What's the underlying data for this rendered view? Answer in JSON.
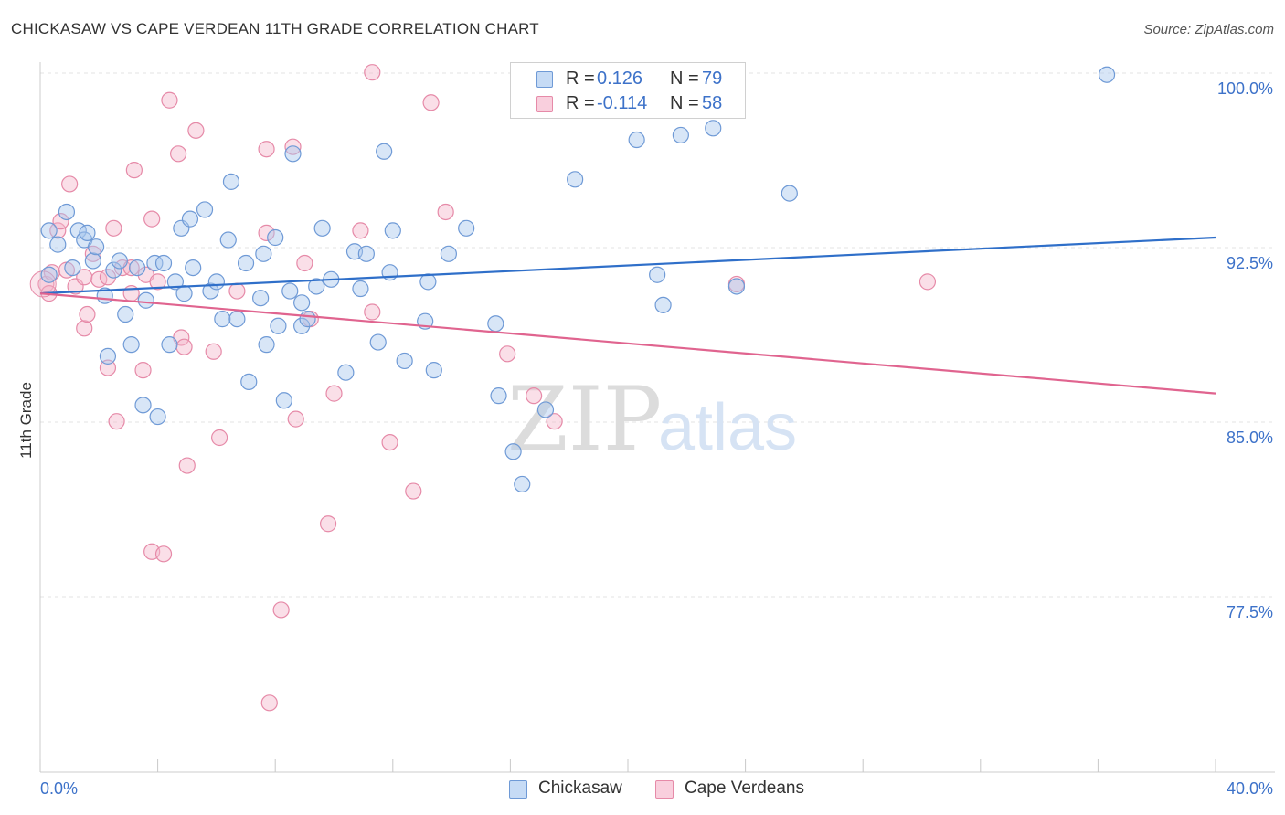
{
  "title": "CHICKASAW VS CAPE VERDEAN 11TH GRADE CORRELATION CHART",
  "source": "Source: ZipAtlas.com",
  "watermark": {
    "zip": "ZIP",
    "atlas": "atlas"
  },
  "colors": {
    "blue_fill": "#a9c7ee",
    "blue_stroke": "#6f9ad6",
    "blue_line": "#2f6fc9",
    "pink_fill": "#f4b8cb",
    "pink_stroke": "#e68aa8",
    "pink_line": "#e0648f",
    "tick_label": "#3d72c9",
    "grid": "#e3e3e3"
  },
  "legend": {
    "r_label": "R =",
    "n_label": "N =",
    "rows": [
      {
        "r": "0.126",
        "n": "79",
        "color": "blue"
      },
      {
        "r": "-0.114",
        "n": "58",
        "color": "pink"
      }
    ]
  },
  "bottom_legend": [
    "Chickasaw",
    "Cape Verdeans"
  ],
  "chart_data": {
    "type": "scatter",
    "title": "CHICKASAW VS CAPE VERDEAN 11TH GRADE CORRELATION CHART",
    "xlabel": "",
    "ylabel": "11th Grade",
    "xlim": [
      0.0,
      40.0
    ],
    "ylim": [
      71.5,
      101.5
    ],
    "x_tick_labels": [
      "0.0%",
      "40.0%"
    ],
    "y_ticks": [
      77.5,
      85.0,
      92.5,
      100.0
    ],
    "y_tick_labels": [
      "77.5%",
      "85.0%",
      "92.5%",
      "100.0%"
    ],
    "grid": true,
    "legend_position": "top-center",
    "series": [
      {
        "name": "Chickasaw",
        "color": "blue",
        "trend": {
          "x": [
            0.0,
            40.0
          ],
          "y": [
            91.2,
            93.6
          ]
        },
        "points": [
          [
            0.3,
            93.9
          ],
          [
            0.3,
            92.0
          ],
          [
            0.6,
            93.3
          ],
          [
            0.9,
            94.7
          ],
          [
            1.1,
            92.3
          ],
          [
            1.3,
            93.9
          ],
          [
            1.5,
            93.5
          ],
          [
            1.6,
            93.8
          ],
          [
            1.8,
            92.6
          ],
          [
            1.9,
            93.2
          ],
          [
            2.2,
            91.1
          ],
          [
            2.3,
            88.5
          ],
          [
            2.5,
            92.2
          ],
          [
            2.7,
            92.6
          ],
          [
            2.9,
            90.3
          ],
          [
            3.1,
            89.0
          ],
          [
            3.3,
            92.3
          ],
          [
            3.5,
            86.4
          ],
          [
            3.6,
            90.9
          ],
          [
            3.9,
            92.5
          ],
          [
            4.0,
            85.9
          ],
          [
            4.2,
            92.5
          ],
          [
            4.4,
            89.0
          ],
          [
            4.6,
            91.7
          ],
          [
            4.8,
            94.0
          ],
          [
            4.9,
            91.2
          ],
          [
            5.1,
            94.4
          ],
          [
            5.2,
            92.3
          ],
          [
            5.6,
            94.8
          ],
          [
            5.8,
            91.3
          ],
          [
            6.0,
            91.7
          ],
          [
            6.2,
            90.1
          ],
          [
            6.4,
            93.5
          ],
          [
            6.5,
            96.0
          ],
          [
            6.7,
            90.1
          ],
          [
            7.0,
            92.5
          ],
          [
            7.1,
            87.4
          ],
          [
            7.5,
            91.0
          ],
          [
            7.6,
            92.9
          ],
          [
            7.7,
            89.0
          ],
          [
            8.0,
            93.6
          ],
          [
            8.1,
            89.8
          ],
          [
            8.3,
            86.6
          ],
          [
            8.5,
            91.3
          ],
          [
            8.6,
            97.2
          ],
          [
            8.9,
            89.8
          ],
          [
            8.9,
            90.8
          ],
          [
            9.1,
            90.1
          ],
          [
            9.4,
            91.5
          ],
          [
            9.6,
            94.0
          ],
          [
            9.9,
            91.8
          ],
          [
            10.4,
            87.8
          ],
          [
            10.7,
            93.0
          ],
          [
            10.9,
            91.4
          ],
          [
            11.1,
            92.9
          ],
          [
            11.5,
            89.1
          ],
          [
            11.7,
            97.3
          ],
          [
            11.9,
            92.1
          ],
          [
            12.0,
            93.9
          ],
          [
            12.4,
            88.3
          ],
          [
            13.1,
            90.0
          ],
          [
            13.2,
            91.7
          ],
          [
            13.4,
            87.9
          ],
          [
            13.9,
            92.9
          ],
          [
            14.5,
            94.0
          ],
          [
            15.5,
            89.9
          ],
          [
            15.6,
            86.8
          ],
          [
            16.1,
            84.4
          ],
          [
            16.4,
            83.0
          ],
          [
            17.2,
            86.2
          ],
          [
            18.2,
            96.1
          ],
          [
            20.3,
            97.8
          ],
          [
            21.0,
            92.0
          ],
          [
            21.2,
            90.7
          ],
          [
            21.8,
            98.0
          ],
          [
            22.9,
            98.3
          ],
          [
            23.7,
            91.5
          ],
          [
            25.5,
            95.5
          ],
          [
            36.3,
            100.6
          ]
        ]
      },
      {
        "name": "Cape Verdeans",
        "color": "pink",
        "trend": {
          "x": [
            0.0,
            40.0
          ],
          "y": [
            91.2,
            86.9
          ]
        },
        "points": [
          [
            0.2,
            91.6
          ],
          [
            0.3,
            91.2
          ],
          [
            0.4,
            92.1
          ],
          [
            0.6,
            93.9
          ],
          [
            0.7,
            94.3
          ],
          [
            0.9,
            92.2
          ],
          [
            1.0,
            95.9
          ],
          [
            1.2,
            91.5
          ],
          [
            1.5,
            91.9
          ],
          [
            1.5,
            89.7
          ],
          [
            1.6,
            90.3
          ],
          [
            1.8,
            92.9
          ],
          [
            2.0,
            91.8
          ],
          [
            2.3,
            91.9
          ],
          [
            2.3,
            88.0
          ],
          [
            2.5,
            94.0
          ],
          [
            2.6,
            85.7
          ],
          [
            2.8,
            92.3
          ],
          [
            3.1,
            92.3
          ],
          [
            3.1,
            91.2
          ],
          [
            3.2,
            96.5
          ],
          [
            3.5,
            87.9
          ],
          [
            3.6,
            92.0
          ],
          [
            3.8,
            94.4
          ],
          [
            3.8,
            80.1
          ],
          [
            4.0,
            91.7
          ],
          [
            4.2,
            80.0
          ],
          [
            4.4,
            99.5
          ],
          [
            4.7,
            97.2
          ],
          [
            4.8,
            89.3
          ],
          [
            4.9,
            88.9
          ],
          [
            5.0,
            83.8
          ],
          [
            5.3,
            98.2
          ],
          [
            5.9,
            88.7
          ],
          [
            6.1,
            85.0
          ],
          [
            6.7,
            91.3
          ],
          [
            7.7,
            93.8
          ],
          [
            7.7,
            97.4
          ],
          [
            7.8,
            73.6
          ],
          [
            8.2,
            77.6
          ],
          [
            8.6,
            97.5
          ],
          [
            8.7,
            85.8
          ],
          [
            9.0,
            92.5
          ],
          [
            9.2,
            90.1
          ],
          [
            9.8,
            81.3
          ],
          [
            10.0,
            86.9
          ],
          [
            10.9,
            93.9
          ],
          [
            11.3,
            90.4
          ],
          [
            11.9,
            84.8
          ],
          [
            11.3,
            100.7
          ],
          [
            12.7,
            82.7
          ],
          [
            13.3,
            99.4
          ],
          [
            13.8,
            94.7
          ],
          [
            15.9,
            88.6
          ],
          [
            16.8,
            86.8
          ],
          [
            17.5,
            85.7
          ],
          [
            23.7,
            91.6
          ],
          [
            30.2,
            91.7
          ]
        ]
      }
    ]
  }
}
